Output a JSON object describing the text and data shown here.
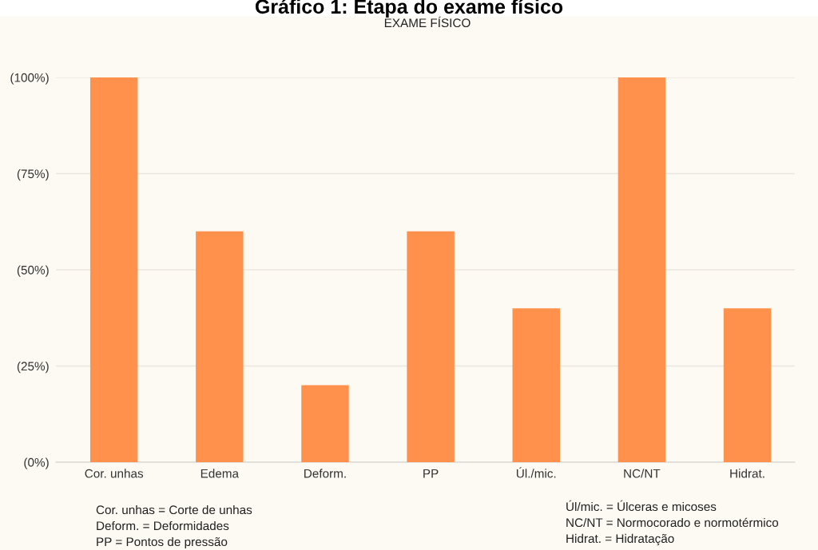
{
  "chart_data": {
    "type": "bar",
    "title": "Gráfico 1: Etapa do exame físico",
    "subtitle": "EXAME FÍSICO",
    "categories": [
      "Cor. unhas",
      "Edema",
      "Deform.",
      "PP",
      "Úl./mic.",
      "NC/NT",
      "Hidrat."
    ],
    "values": [
      100,
      60,
      20,
      60,
      40,
      100,
      40
    ],
    "color": "#ff914d",
    "ylim": [
      0,
      100
    ],
    "yticks": [
      {
        "value": 0,
        "label": "(0%)"
      },
      {
        "value": 25,
        "label": "(25%)"
      },
      {
        "value": 50,
        "label": "(50%)"
      },
      {
        "value": 75,
        "label": "(75%)"
      },
      {
        "value": 100,
        "label": "(100%)"
      }
    ],
    "grid": "y",
    "legend": false,
    "annotations": [
      "Cor. unhas = Corte de unhas",
      "Deform. = Deformidades",
      "PP = Pontos de pressão",
      "Úl/mic. = Úlceras e micoses",
      "NC/NT = Normocorado e normotérmico",
      "Hidrat. = Hidratação"
    ]
  }
}
